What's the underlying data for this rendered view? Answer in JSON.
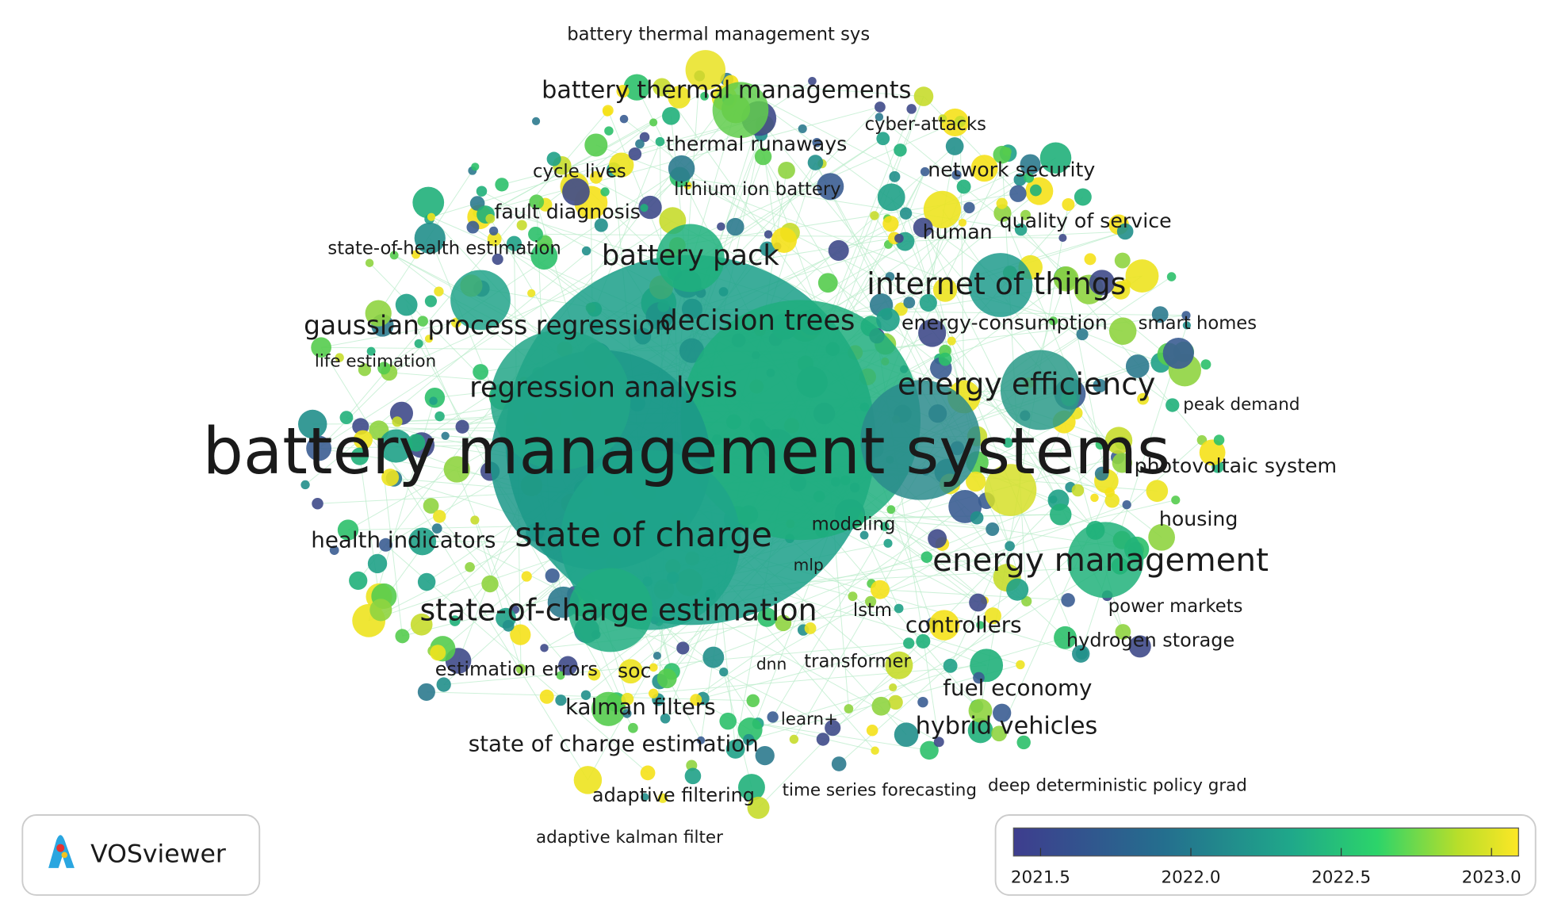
{
  "nodes": [
    {
      "label": "battery thermal management sys"
    },
    {
      "label": "battery thermal managements"
    },
    {
      "label": "cyber-attacks"
    },
    {
      "label": "thermal runaways"
    },
    {
      "label": "cycle lives"
    },
    {
      "label": "network security"
    },
    {
      "label": "lithium ion battery"
    },
    {
      "label": "fault diagnosis"
    },
    {
      "label": "quality of service"
    },
    {
      "label": "human"
    },
    {
      "label": "state-of-health estimation"
    },
    {
      "label": "battery pack"
    },
    {
      "label": "internet of things"
    },
    {
      "label": "gaussian process regression"
    },
    {
      "label": "decision trees"
    },
    {
      "label": "energy-consumption"
    },
    {
      "label": "smart homes"
    },
    {
      "label": "life estimation"
    },
    {
      "label": "regression analysis"
    },
    {
      "label": "energy efficiency"
    },
    {
      "label": "peak demand"
    },
    {
      "label": "battery management systems"
    },
    {
      "label": "photovoltaic system"
    },
    {
      "label": "housing"
    },
    {
      "label": "modeling"
    },
    {
      "label": "health indicators"
    },
    {
      "label": "state of charge"
    },
    {
      "label": "energy management"
    },
    {
      "label": "mlp"
    },
    {
      "label": "state-of-charge estimation"
    },
    {
      "label": "lstm"
    },
    {
      "label": "power markets"
    },
    {
      "label": "controllers"
    },
    {
      "label": "hydrogen storage"
    },
    {
      "label": "estimation errors"
    },
    {
      "label": "soc"
    },
    {
      "label": "dnn"
    },
    {
      "label": "transformer"
    },
    {
      "label": "fuel economy"
    },
    {
      "label": "kalman filters"
    },
    {
      "label": "learn+"
    },
    {
      "label": "hybrid vehicles"
    },
    {
      "label": "state of charge estimation"
    },
    {
      "label": "time series forecasting"
    },
    {
      "label": "deep deterministic policy grad"
    },
    {
      "label": "adaptive filtering"
    },
    {
      "label": "adaptive kalman filter"
    }
  ],
  "logo": {
    "text": "VOSviewer"
  },
  "legend": {
    "range": [
      2021.41,
      2023.09
    ],
    "ticks": [
      2021.5,
      {
        "value": 2022,
        "label": "2022.0"
      },
      2022.5,
      {
        "value": 2023,
        "label": "2023.0"
      }
    ]
  }
}
